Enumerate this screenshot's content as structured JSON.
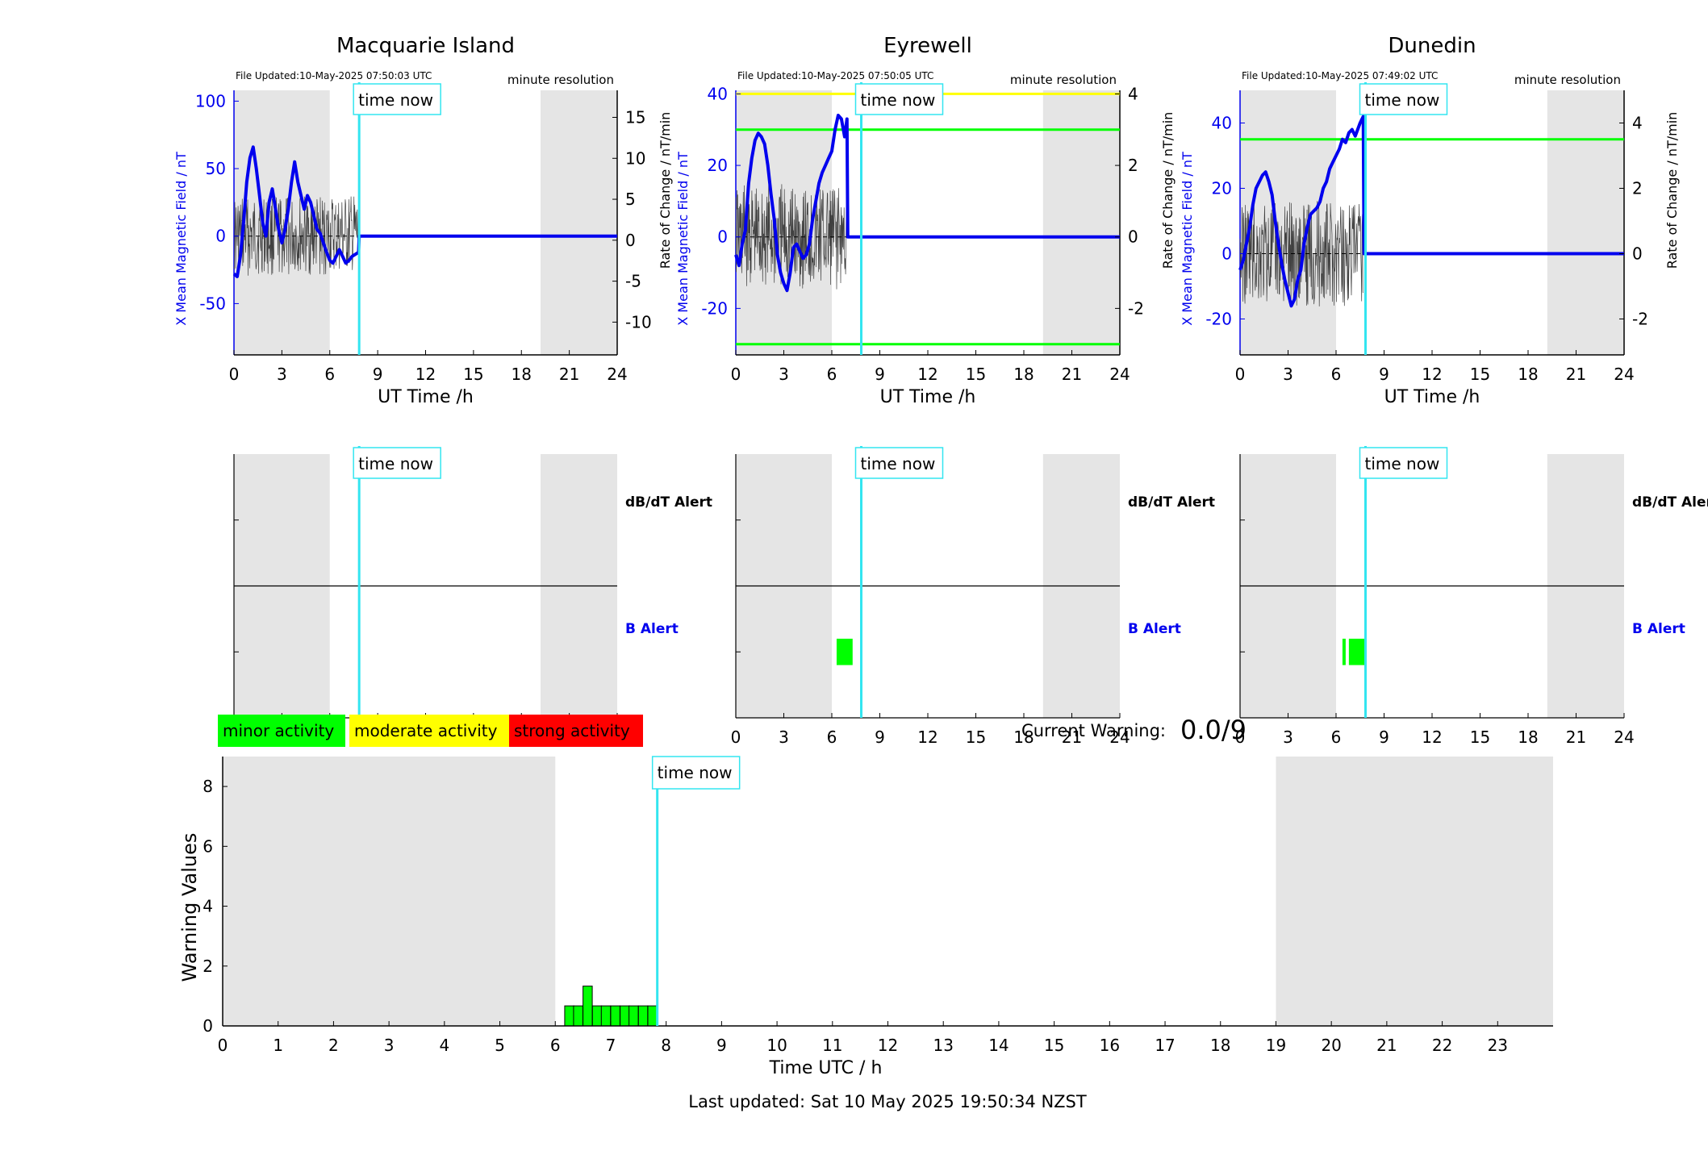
{
  "colors": {
    "shade": "#e5e5e5",
    "x_field": "#0000ee",
    "roc": "#404040",
    "time_now": "#33e5f0",
    "minor": "#00ff00",
    "moderate": "#ffff00",
    "strong": "#ff0000",
    "axis": "#000000"
  },
  "time_now_hours": 7.84,
  "night_shade_hours": [
    [
      0,
      6
    ],
    [
      19.2,
      24
    ]
  ],
  "time_now_label": "time now",
  "stations": [
    {
      "name": "Macquarie Island",
      "file_updated": "File Updated:10-May-2025 07:50:03 UTC",
      "resolution": "minute resolution",
      "y_left_label": "X Mean Magnetic Field / nT",
      "y_right_label": "Rate of Change / nT/min",
      "x_label": "UT Time /h",
      "y_left_range": [
        -88,
        108
      ],
      "y_left_ticks": [
        -50,
        0,
        50,
        100
      ],
      "y_right_range": [
        -14,
        18.3
      ],
      "y_right_ticks": [
        -10,
        -5,
        0,
        5,
        10,
        15
      ],
      "thresholds_left": [],
      "thresholds_right": [],
      "x_field_points": [
        [
          0,
          -28
        ],
        [
          0.2,
          -30
        ],
        [
          0.4,
          -15
        ],
        [
          0.6,
          10
        ],
        [
          0.8,
          40
        ],
        [
          1.0,
          58
        ],
        [
          1.2,
          66
        ],
        [
          1.4,
          50
        ],
        [
          1.6,
          30
        ],
        [
          1.8,
          10
        ],
        [
          2.0,
          0
        ],
        [
          2.2,
          25
        ],
        [
          2.4,
          35
        ],
        [
          2.6,
          20
        ],
        [
          2.8,
          5
        ],
        [
          3.0,
          -5
        ],
        [
          3.2,
          5
        ],
        [
          3.4,
          20
        ],
        [
          3.6,
          40
        ],
        [
          3.8,
          55
        ],
        [
          4.0,
          40
        ],
        [
          4.2,
          30
        ],
        [
          4.4,
          20
        ],
        [
          4.6,
          30
        ],
        [
          4.8,
          25
        ],
        [
          5.0,
          15
        ],
        [
          5.2,
          5
        ],
        [
          5.4,
          2
        ],
        [
          5.6,
          -5
        ],
        [
          5.8,
          -12
        ],
        [
          6.0,
          -18
        ],
        [
          6.2,
          -20
        ],
        [
          6.4,
          -15
        ],
        [
          6.6,
          -10
        ],
        [
          6.8,
          -15
        ],
        [
          7.0,
          -20
        ],
        [
          7.2,
          -18
        ],
        [
          7.4,
          -15
        ],
        [
          7.8,
          -12
        ],
        [
          7.84,
          0
        ],
        [
          24,
          0
        ]
      ],
      "roc_amplitude": 6,
      "roc_range_h": [
        0,
        7.8
      ],
      "alerts": {
        "dbdt_label": "dB/dT Alert",
        "b_label": "B Alert",
        "b_alert_blocks": []
      }
    },
    {
      "name": "Eyrewell",
      "file_updated": "File Updated:10-May-2025 07:50:05 UTC",
      "resolution": "minute resolution",
      "y_left_label": "X Mean Magnetic Field / nT",
      "y_right_label": "Rate of Change / nT/min",
      "x_label": "UT Time /h",
      "y_left_range": [
        -33,
        41
      ],
      "y_left_ticks": [
        -20,
        0,
        20,
        40
      ],
      "y_right_range": [
        -3.3,
        4.1
      ],
      "y_right_ticks": [
        -2,
        0,
        2,
        4
      ],
      "thresholds_left": [
        {
          "value": 40,
          "color": "#ffff00"
        },
        {
          "value": 30,
          "color": "#00ff00"
        },
        {
          "value": -30,
          "color": "#00ff00"
        }
      ],
      "thresholds_right": [],
      "x_field_points": [
        [
          0,
          -5
        ],
        [
          0.2,
          -8
        ],
        [
          0.4,
          -2
        ],
        [
          0.6,
          2
        ],
        [
          0.8,
          15
        ],
        [
          1.0,
          22
        ],
        [
          1.2,
          27
        ],
        [
          1.4,
          29
        ],
        [
          1.6,
          28
        ],
        [
          1.8,
          26
        ],
        [
          2.0,
          20
        ],
        [
          2.2,
          12
        ],
        [
          2.4,
          5
        ],
        [
          2.6,
          -5
        ],
        [
          2.8,
          -10
        ],
        [
          3.0,
          -13
        ],
        [
          3.2,
          -15
        ],
        [
          3.4,
          -10
        ],
        [
          3.6,
          -3
        ],
        [
          3.8,
          -2
        ],
        [
          4.0,
          -4
        ],
        [
          4.2,
          -6
        ],
        [
          4.4,
          -5
        ],
        [
          4.6,
          -2
        ],
        [
          4.8,
          5
        ],
        [
          5.0,
          10
        ],
        [
          5.2,
          15
        ],
        [
          5.4,
          18
        ],
        [
          5.6,
          20
        ],
        [
          5.8,
          22
        ],
        [
          6.0,
          24
        ],
        [
          6.2,
          30
        ],
        [
          6.4,
          34
        ],
        [
          6.6,
          33
        ],
        [
          6.8,
          28
        ],
        [
          6.95,
          33
        ],
        [
          7.0,
          0
        ],
        [
          24,
          0
        ]
      ],
      "roc_amplitude": 8,
      "roc_range_h": [
        0,
        7.0
      ],
      "alerts": {
        "dbdt_label": "dB/dT Alert",
        "b_label": "B Alert",
        "b_alert_blocks": [
          [
            6.3,
            7.3
          ]
        ]
      }
    },
    {
      "name": "Dunedin",
      "file_updated": "File Updated:10-May-2025 07:49:02 UTC",
      "resolution": "minute resolution",
      "y_left_label": "X Mean Magnetic Field / nT",
      "y_right_label": "Rate of Change / nT/min",
      "x_label": "UT Time /h",
      "y_left_range": [
        -31,
        50
      ],
      "y_left_ticks": [
        -20,
        0,
        20,
        40
      ],
      "y_right_range": [
        -3.1,
        5.0
      ],
      "y_right_ticks": [
        -2,
        0,
        2,
        4
      ],
      "thresholds_left": [
        {
          "value": 35,
          "color": "#00ff00"
        }
      ],
      "thresholds_right": [],
      "x_field_points": [
        [
          0,
          -5
        ],
        [
          0.2,
          -2
        ],
        [
          0.4,
          3
        ],
        [
          0.6,
          8
        ],
        [
          0.8,
          15
        ],
        [
          1.0,
          20
        ],
        [
          1.2,
          22
        ],
        [
          1.4,
          24
        ],
        [
          1.6,
          25
        ],
        [
          1.8,
          22
        ],
        [
          2.0,
          18
        ],
        [
          2.2,
          10
        ],
        [
          2.4,
          3
        ],
        [
          2.6,
          -3
        ],
        [
          2.8,
          -8
        ],
        [
          3.0,
          -12
        ],
        [
          3.2,
          -16
        ],
        [
          3.4,
          -14
        ],
        [
          3.6,
          -8
        ],
        [
          3.8,
          -5
        ],
        [
          4.0,
          3
        ],
        [
          4.2,
          8
        ],
        [
          4.4,
          12
        ],
        [
          4.6,
          13
        ],
        [
          4.8,
          14
        ],
        [
          5.0,
          16
        ],
        [
          5.2,
          20
        ],
        [
          5.4,
          22
        ],
        [
          5.6,
          26
        ],
        [
          5.8,
          28
        ],
        [
          6.0,
          30
        ],
        [
          6.2,
          32
        ],
        [
          6.4,
          35
        ],
        [
          6.6,
          34
        ],
        [
          6.8,
          37
        ],
        [
          7.0,
          38
        ],
        [
          7.2,
          36
        ],
        [
          7.5,
          40
        ],
        [
          7.7,
          42
        ],
        [
          7.75,
          0
        ],
        [
          24,
          0
        ]
      ],
      "roc_amplitude": 8,
      "roc_range_h": [
        0,
        7.7
      ],
      "alerts": {
        "dbdt_label": "dB/dT Alert",
        "b_label": "B Alert",
        "b_alert_blocks": [
          [
            6.4,
            6.6
          ],
          [
            6.8,
            7.8
          ]
        ]
      }
    }
  ],
  "x_ticks_24": [
    0,
    3,
    6,
    9,
    12,
    15,
    18,
    21,
    24
  ],
  "legend": [
    {
      "label": "minor activity",
      "color": "#00ff00"
    },
    {
      "label": "moderate activity",
      "color": "#ffff00"
    },
    {
      "label": "strong activity",
      "color": "#ff0000"
    }
  ],
  "current_warning": {
    "label": "Current Warning:",
    "value": "0.0/9"
  },
  "warning_chart": {
    "type": "bar",
    "ylabel": "Warning Values",
    "xlabel": "Time UTC / h",
    "xlim": [
      0,
      24
    ],
    "ylim": [
      0,
      9
    ],
    "y_ticks": [
      0,
      2,
      4,
      6,
      8
    ],
    "x_ticks": [
      0,
      1,
      2,
      3,
      4,
      5,
      6,
      7,
      8,
      9,
      10,
      11,
      12,
      13,
      14,
      15,
      16,
      17,
      18,
      19,
      20,
      21,
      22,
      23
    ],
    "shade_ranges": [
      [
        0,
        6
      ],
      [
        19,
        24
      ]
    ],
    "bar_width_h": 0.167,
    "bars": [
      {
        "start": 6.17,
        "value": 0.67
      },
      {
        "start": 6.33,
        "value": 0.67
      },
      {
        "start": 6.5,
        "value": 1.33
      },
      {
        "start": 6.67,
        "value": 0.67
      },
      {
        "start": 6.83,
        "value": 0.67
      },
      {
        "start": 7.0,
        "value": 0.67
      },
      {
        "start": 7.17,
        "value": 0.67
      },
      {
        "start": 7.33,
        "value": 0.67
      },
      {
        "start": 7.5,
        "value": 0.67
      },
      {
        "start": 7.67,
        "value": 0.67
      }
    ]
  },
  "last_updated": "Last updated: Sat 10 May 2025 19:50:34 NZST"
}
